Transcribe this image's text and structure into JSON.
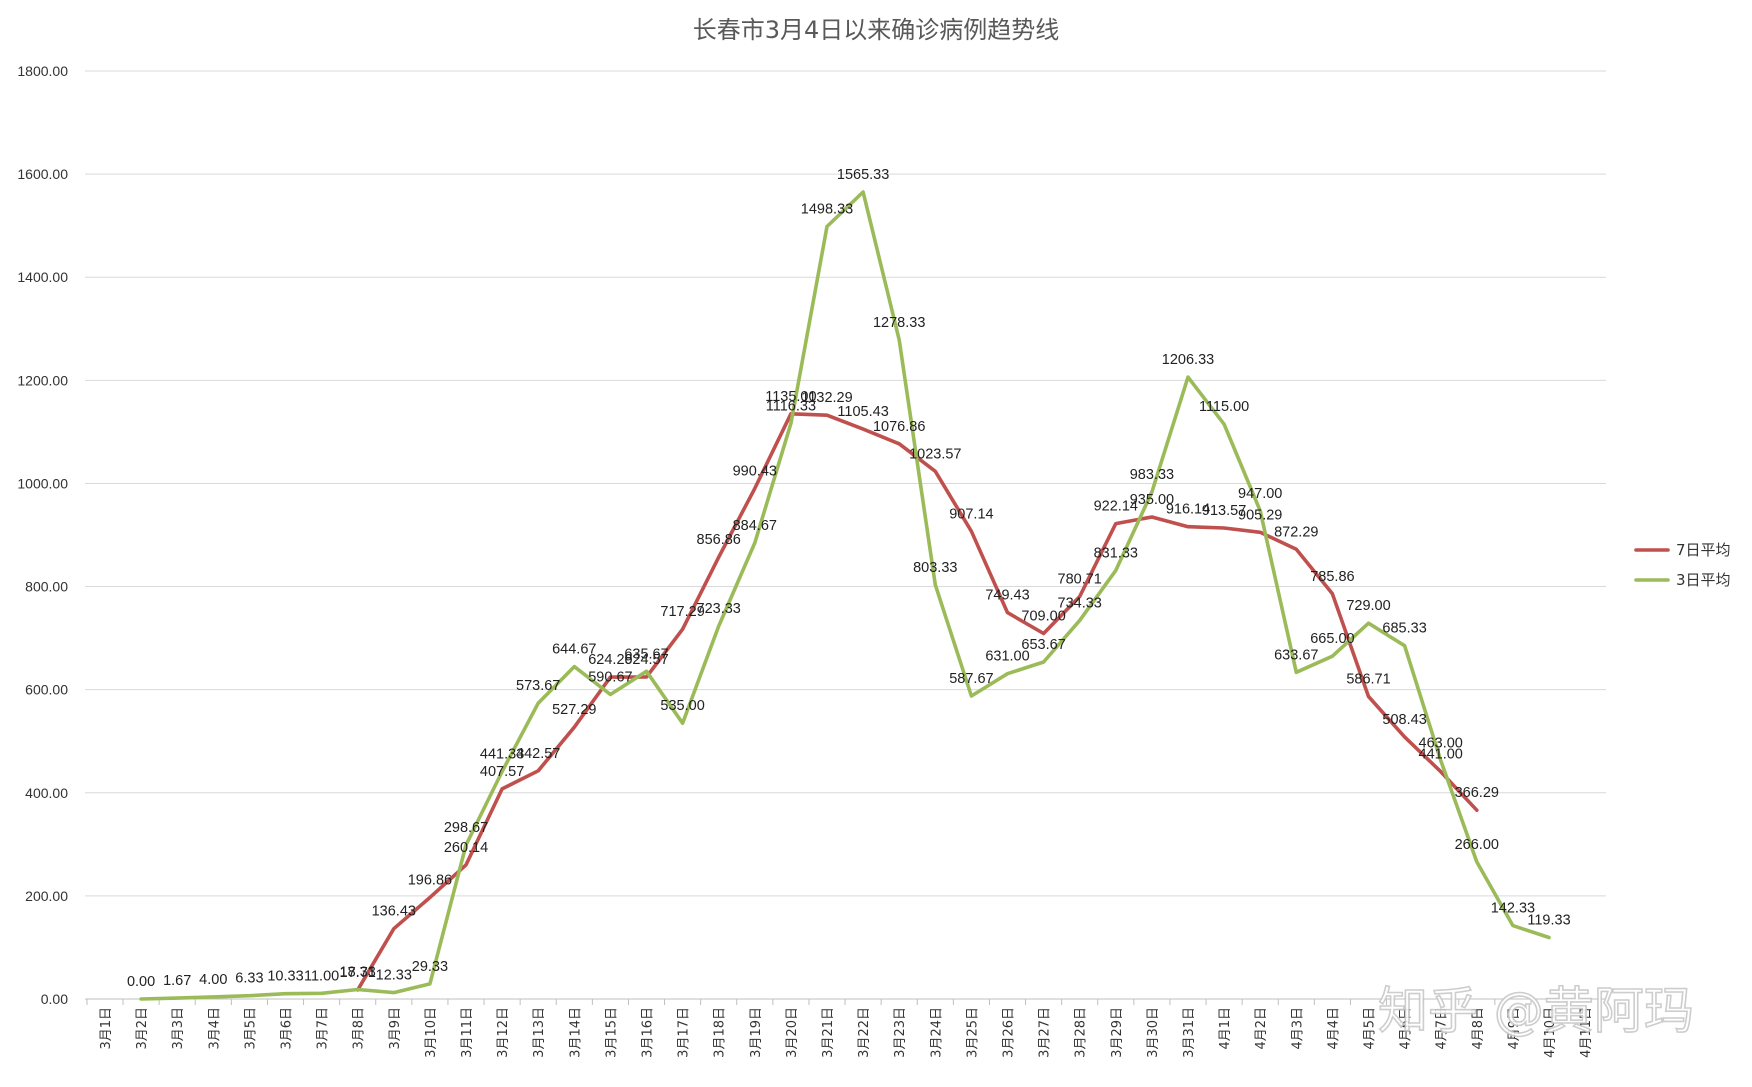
{
  "watermark": "知乎 @黄阿玛",
  "colors": {
    "series_7day": "#c0504d",
    "series_3day": "#9bbb59",
    "grid": "#d9d9d9",
    "axis": "#bfbfbf"
  },
  "chart_data": {
    "type": "line",
    "title": "长春市3月4日以来确诊病例趋势线",
    "xlabel": "",
    "ylabel": "",
    "ylim": [
      0,
      1800
    ],
    "yticks": [
      "0.00",
      "200.00",
      "400.00",
      "600.00",
      "800.00",
      "1000.00",
      "1200.00",
      "1400.00",
      "1600.00",
      "1800.00"
    ],
    "grid": true,
    "legend_position": "right",
    "categories": [
      "3月1日",
      "3月2日",
      "3月3日",
      "3月4日",
      "3月5日",
      "3月6日",
      "3月7日",
      "3月8日",
      "3月9日",
      "3月10日",
      "3月11日",
      "3月12日",
      "3月13日",
      "3月14日",
      "3月15日",
      "3月16日",
      "3月17日",
      "3月18日",
      "3月19日",
      "3月20日",
      "3月21日",
      "3月22日",
      "3月23日",
      "3月24日",
      "3月25日",
      "3月26日",
      "3月27日",
      "3月28日",
      "3月29日",
      "3月30日",
      "3月31日",
      "4月1日",
      "4月2日",
      "4月3日",
      "4月4日",
      "4月5日",
      "4月6日",
      "4月7日",
      "4月8日",
      "4月9日",
      "4月10日",
      "4月11日"
    ],
    "series": [
      {
        "name": "7日平均",
        "values": [
          null,
          null,
          null,
          null,
          null,
          null,
          null,
          17.71,
          136.43,
          196.86,
          260.14,
          407.57,
          442.57,
          527.29,
          624.29,
          624.57,
          717.29,
          856.86,
          990.43,
          1135.0,
          1132.29,
          1105.43,
          1076.86,
          1023.57,
          907.14,
          749.43,
          709.0,
          780.71,
          922.14,
          935.0,
          916.14,
          913.57,
          905.29,
          872.29,
          785.86,
          586.71,
          508.43,
          441.0,
          366.29,
          null,
          null,
          null
        ],
        "labels": [
          null,
          null,
          null,
          null,
          null,
          null,
          null,
          "17.71",
          "136.43",
          "196.86",
          "260.14",
          "407.57",
          "442.57",
          "527.29",
          "624.29",
          "624.57",
          "717.29",
          "856.86",
          "990.43",
          "1135.00",
          "1132.29",
          "1105.43",
          "1076.86",
          "1023.57",
          "907.14",
          "749.43",
          "709.00",
          "780.71",
          "922.14",
          "935.00",
          "916.14",
          "913.57",
          "905.29",
          "872.29",
          "785.86",
          "586.71",
          "508.43",
          "441.00",
          "366.29",
          null,
          null,
          null
        ]
      },
      {
        "name": "3日平均",
        "values": [
          null,
          0.0,
          1.67,
          4.0,
          6.33,
          10.33,
          11.0,
          18.33,
          12.33,
          29.33,
          298.67,
          441.33,
          573.67,
          644.67,
          590.67,
          635.67,
          535.0,
          723.33,
          884.67,
          1116.33,
          1498.33,
          1565.33,
          1278.33,
          803.33,
          587.67,
          631.0,
          653.67,
          734.33,
          831.33,
          983.33,
          1206.33,
          1115.0,
          947.0,
          633.67,
          665.0,
          729.0,
          685.33,
          463.0,
          266.0,
          142.33,
          119.33,
          null
        ],
        "labels": [
          null,
          "0.00",
          "1.67",
          "4.00",
          "6.33",
          "10.33",
          "11.00",
          "18.33",
          "12.33",
          "29.33",
          "298.67",
          "441.33",
          "573.67",
          "644.67",
          "590.67",
          "635.67",
          "535.00",
          "723.33",
          "884.67",
          "1116.33",
          "1498.33",
          "1565.33",
          "1278.33",
          "803.33",
          "587.67",
          "631.00",
          "653.67",
          "734.33",
          "831.33",
          "983.33",
          "1206.33",
          "1115.00",
          "947.00",
          "633.67",
          "665.00",
          "729.00",
          "685.33",
          "463.00",
          "266.00",
          "142.33",
          "119.33",
          null
        ]
      }
    ]
  }
}
